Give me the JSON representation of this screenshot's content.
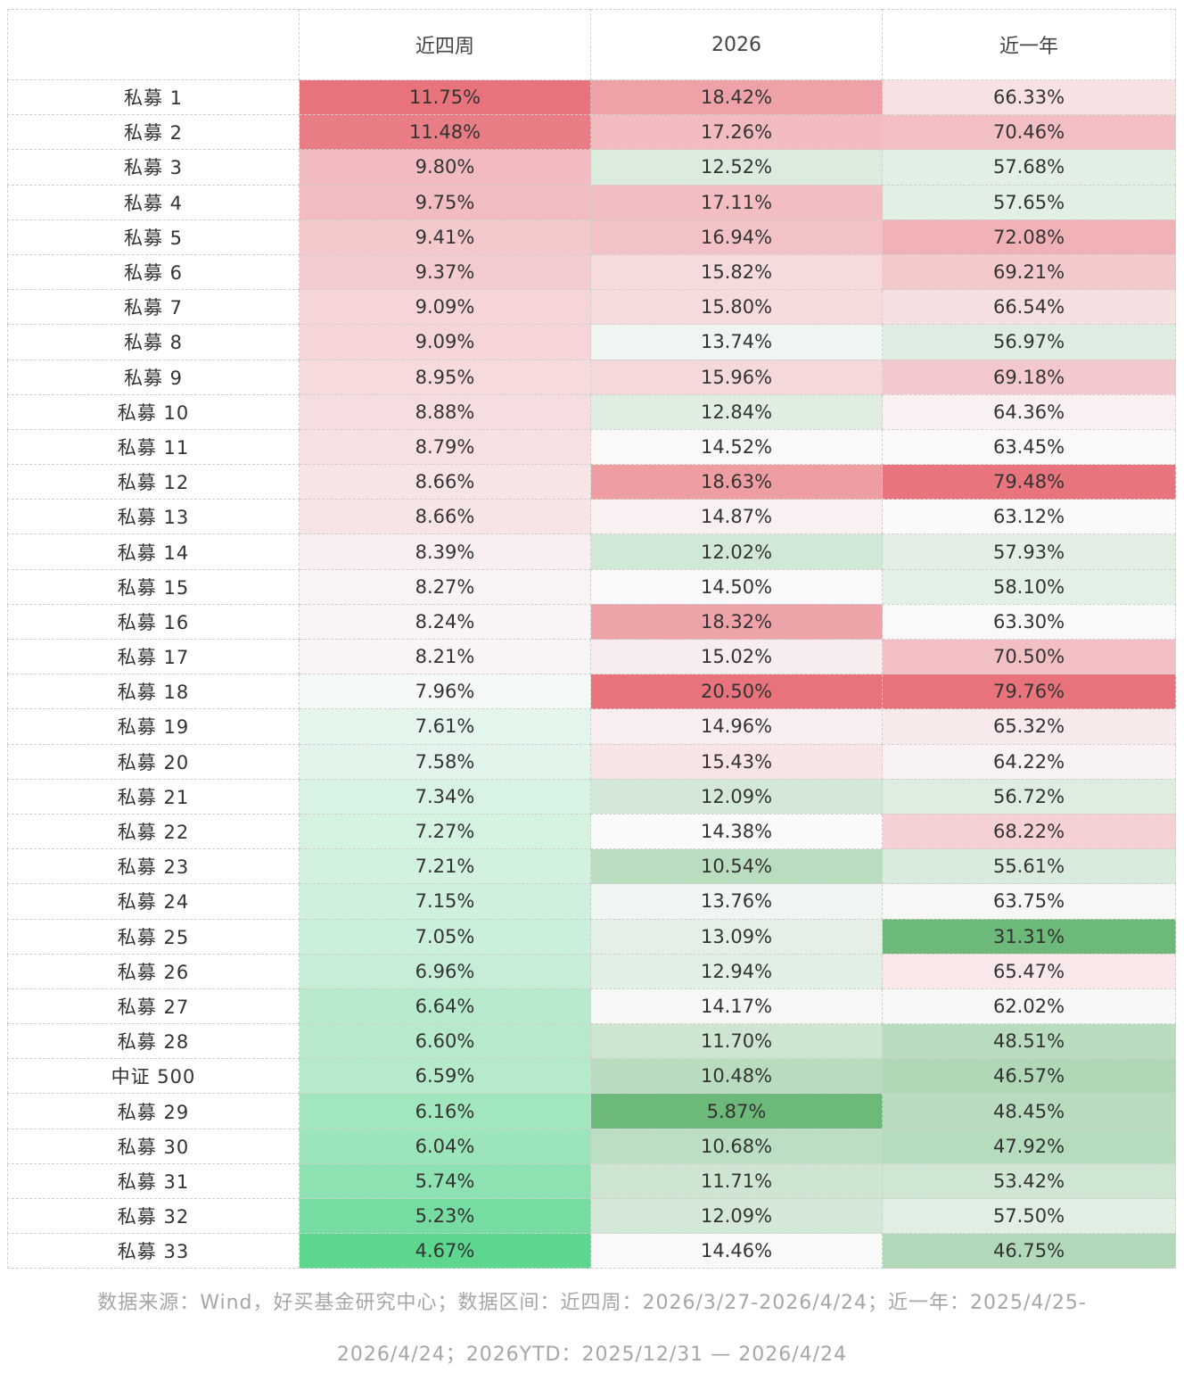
{
  "chart_data": {
    "type": "table",
    "columns": [
      "",
      "近四周",
      "2026",
      "近一年"
    ],
    "rows": [
      {
        "name": "私募 1",
        "values": [
          "11.75%",
          "18.42%",
          "66.33%"
        ]
      },
      {
        "name": "私募 2",
        "values": [
          "11.48%",
          "17.26%",
          "70.46%"
        ]
      },
      {
        "name": "私募 3",
        "values": [
          "9.80%",
          "12.52%",
          "57.68%"
        ]
      },
      {
        "name": "私募 4",
        "values": [
          "9.75%",
          "17.11%",
          "57.65%"
        ]
      },
      {
        "name": "私募 5",
        "values": [
          "9.41%",
          "16.94%",
          "72.08%"
        ]
      },
      {
        "name": "私募 6",
        "values": [
          "9.37%",
          "15.82%",
          "69.21%"
        ]
      },
      {
        "name": "私募 7",
        "values": [
          "9.09%",
          "15.80%",
          "66.54%"
        ]
      },
      {
        "name": "私募 8",
        "values": [
          "9.09%",
          "13.74%",
          "56.97%"
        ]
      },
      {
        "name": "私募 9",
        "values": [
          "8.95%",
          "15.96%",
          "69.18%"
        ]
      },
      {
        "name": "私募 10",
        "values": [
          "8.88%",
          "12.84%",
          "64.36%"
        ]
      },
      {
        "name": "私募 11",
        "values": [
          "8.79%",
          "14.52%",
          "63.45%"
        ]
      },
      {
        "name": "私募 12",
        "values": [
          "8.66%",
          "18.63%",
          "79.48%"
        ]
      },
      {
        "name": "私募 13",
        "values": [
          "8.66%",
          "14.87%",
          "63.12%"
        ]
      },
      {
        "name": "私募 14",
        "values": [
          "8.39%",
          "12.02%",
          "57.93%"
        ]
      },
      {
        "name": "私募 15",
        "values": [
          "8.27%",
          "14.50%",
          "58.10%"
        ]
      },
      {
        "name": "私募 16",
        "values": [
          "8.24%",
          "18.32%",
          "63.30%"
        ]
      },
      {
        "name": "私募 17",
        "values": [
          "8.21%",
          "15.02%",
          "70.50%"
        ]
      },
      {
        "name": "私募 18",
        "values": [
          "7.96%",
          "20.50%",
          "79.76%"
        ]
      },
      {
        "name": "私募 19",
        "values": [
          "7.61%",
          "14.96%",
          "65.32%"
        ]
      },
      {
        "name": "私募 20",
        "values": [
          "7.58%",
          "15.43%",
          "64.22%"
        ]
      },
      {
        "name": "私募 21",
        "values": [
          "7.34%",
          "12.09%",
          "56.72%"
        ]
      },
      {
        "name": "私募 22",
        "values": [
          "7.27%",
          "14.38%",
          "68.22%"
        ]
      },
      {
        "name": "私募 23",
        "values": [
          "7.21%",
          "10.54%",
          "55.61%"
        ]
      },
      {
        "name": "私募 24",
        "values": [
          "7.15%",
          "13.76%",
          "63.75%"
        ]
      },
      {
        "name": "私募 25",
        "values": [
          "7.05%",
          "13.09%",
          "31.31%"
        ]
      },
      {
        "name": "私募 26",
        "values": [
          "6.96%",
          "12.94%",
          "65.47%"
        ]
      },
      {
        "name": "私募 27",
        "values": [
          "6.64%",
          "14.17%",
          "62.02%"
        ]
      },
      {
        "name": "私募 28",
        "values": [
          "6.60%",
          "11.70%",
          "48.51%"
        ]
      },
      {
        "name": "中证 500",
        "values": [
          "6.59%",
          "10.48%",
          "46.57%"
        ]
      },
      {
        "name": "私募 29",
        "values": [
          "6.16%",
          "5.87%",
          "48.45%"
        ]
      },
      {
        "name": "私募 30",
        "values": [
          "6.04%",
          "10.68%",
          "47.92%"
        ]
      },
      {
        "name": "私募 31",
        "values": [
          "5.74%",
          "11.71%",
          "53.42%"
        ]
      },
      {
        "name": "私募 32",
        "values": [
          "5.23%",
          "12.09%",
          "57.50%"
        ]
      },
      {
        "name": "私募 33",
        "values": [
          "4.67%",
          "14.46%",
          "46.75%"
        ]
      }
    ],
    "color_scale": {
      "high": "#e8737c",
      "mid": "#fafafa",
      "low": "#5dd68f",
      "low_alt": "#6db97a"
    }
  },
  "footer": {
    "line1": "数据来源：Wind，好买基金研究中心；数据区间：近四周：2026/3/27-2026/4/24；近一年：2025/4/25-",
    "line2": "2026/4/24；2026YTD：2025/12/31 — 2026/4/24"
  }
}
